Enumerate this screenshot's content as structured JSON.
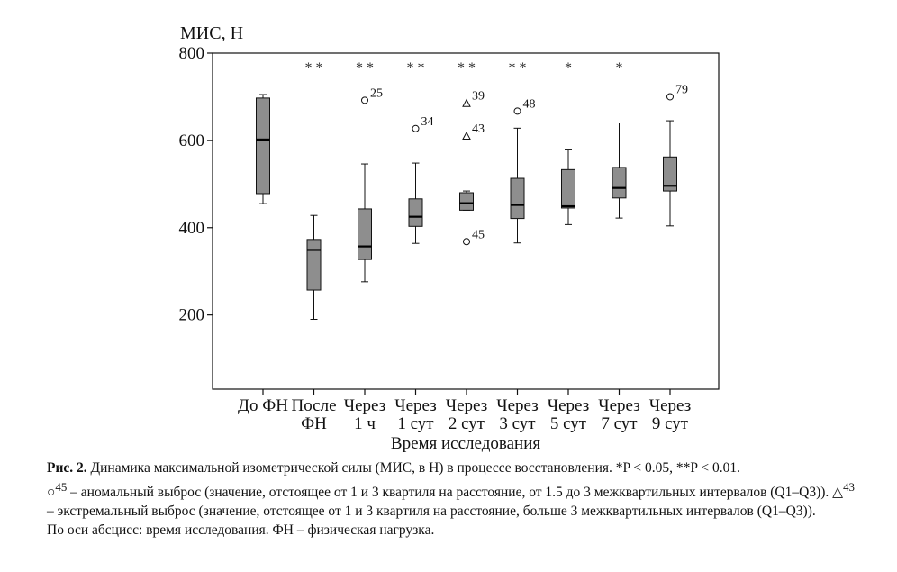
{
  "chart_data": {
    "type": "boxplot",
    "ylabel": "МИС, Н",
    "xlabel": "Время исследования",
    "ylim": [
      30,
      800
    ],
    "yticks": [
      200,
      400,
      600,
      800
    ],
    "categories": [
      [
        "До ФН",
        ""
      ],
      [
        "После",
        "ФН"
      ],
      [
        "Через",
        "1 ч"
      ],
      [
        "Через",
        "1 сут"
      ],
      [
        "Через",
        "2 сут"
      ],
      [
        "Через",
        "3 сут"
      ],
      [
        "Через",
        "5 сут"
      ],
      [
        "Через",
        "7 сут"
      ],
      [
        "Через",
        "9 сут"
      ]
    ],
    "boxes": [
      {
        "min": 455,
        "q1": 478,
        "median": 602,
        "q3": 697,
        "max": 705,
        "sig": ""
      },
      {
        "min": 190,
        "q1": 257,
        "median": 349,
        "q3": 373,
        "max": 428,
        "sig": "* *"
      },
      {
        "min": 276,
        "q1": 327,
        "median": 357,
        "q3": 443,
        "max": 546,
        "sig": "* *"
      },
      {
        "min": 364,
        "q1": 403,
        "median": 425,
        "q3": 466,
        "max": 548,
        "sig": "* *"
      },
      {
        "min": 440,
        "q1": 440,
        "median": 456,
        "q3": 480,
        "max": 484,
        "sig": "* *"
      },
      {
        "min": 365,
        "q1": 421,
        "median": 452,
        "q3": 513,
        "max": 628,
        "sig": "* *"
      },
      {
        "min": 407,
        "q1": 445,
        "median": 449,
        "q3": 533,
        "max": 580,
        "sig": "*"
      },
      {
        "min": 422,
        "q1": 468,
        "median": 491,
        "q3": 538,
        "max": 640,
        "sig": "*"
      },
      {
        "min": 404,
        "q1": 484,
        "median": 496,
        "q3": 562,
        "max": 645,
        "sig": ""
      }
    ],
    "outliers": [
      {
        "cat": 2,
        "value": 692,
        "label": "25",
        "kind": "circle"
      },
      {
        "cat": 3,
        "value": 627,
        "label": "34",
        "kind": "circle"
      },
      {
        "cat": 4,
        "value": 685,
        "label": "39",
        "kind": "triangle"
      },
      {
        "cat": 4,
        "value": 610,
        "label": "43",
        "kind": "triangle"
      },
      {
        "cat": 4,
        "value": 368,
        "label": "45",
        "kind": "circle"
      },
      {
        "cat": 5,
        "value": 667,
        "label": "48",
        "kind": "circle"
      },
      {
        "cat": 8,
        "value": 700,
        "label": "79",
        "kind": "circle"
      }
    ]
  },
  "caption": {
    "fig_label": "Рис. 2.",
    "title": "Динамика максимальной изометрической силы (МИС, в Н) в процессе восстановления. *P < 0.05, **P < 0.01.",
    "anomal_prefix": "○",
    "anomal_sup": "45",
    "anomal_text": " – аномальный выброс (значение, отстоящее от 1 и 3 квартиля на расстояние, от 1.5 до 3 межквартильных интервалов (Q1–Q3)). ",
    "extreme_prefix": "△",
    "extreme_sup": "43",
    "extreme_text": " – экстремальный выброс (значение, отстоящее от 1 и 3 квартиля на расстояние, больше 3 межквартильных интервалов (Q1–Q3)).",
    "axis_note": "По оси абсцисс: время исследования. ФН – физическая нагрузка."
  }
}
